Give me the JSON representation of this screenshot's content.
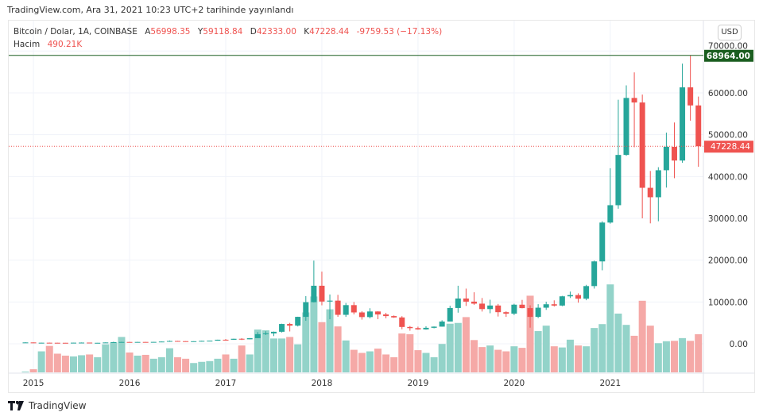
{
  "published": "TradingView.com, Ara 31, 2021 10:23 UTC+2 tarihinde yayınlandı",
  "legend": {
    "symbol": "Bitcoin / Dolar, 1A, COINBASE",
    "open_label": "A",
    "open": "56998.35",
    "high_label": "Y",
    "high": "59118.84",
    "low_label": "D",
    "low": "42333.00",
    "close_label": "K",
    "close": "47228.44",
    "change": "-9759.53 (−17.13%)",
    "volume_label": "Hacim",
    "volume": "490.21K"
  },
  "currency_button": "USD",
  "footer_brand": "TradingView",
  "colors": {
    "up": "#26a69a",
    "down": "#ef5350",
    "up_volume": "#93d3c9",
    "down_volume": "#f5a9a7",
    "high_line": "#1b5e20"
  },
  "chart_data": {
    "type": "candlestick",
    "interval": "1 month",
    "x_ticks": [
      "2015",
      "2016",
      "2017",
      "2018",
      "2019",
      "2020",
      "2021"
    ],
    "y_ticks": [
      "0.00",
      "10000.00",
      "20000.00",
      "30000.00",
      "40000.00",
      "50000.00",
      "60000.00",
      "70000.00"
    ],
    "ylim": [
      -6500,
      76000
    ],
    "grid": true,
    "high_marker": {
      "value": 68964.0,
      "label": "68964.00"
    },
    "last_price": {
      "value": 47228.44,
      "label": "47228.44"
    },
    "categories": [
      "2014-12",
      "2015-01",
      "2015-02",
      "2015-03",
      "2015-04",
      "2015-05",
      "2015-06",
      "2015-07",
      "2015-08",
      "2015-09",
      "2015-10",
      "2015-11",
      "2015-12",
      "2016-01",
      "2016-02",
      "2016-03",
      "2016-04",
      "2016-05",
      "2016-06",
      "2016-07",
      "2016-08",
      "2016-09",
      "2016-10",
      "2016-11",
      "2016-12",
      "2017-01",
      "2017-02",
      "2017-03",
      "2017-04",
      "2017-05",
      "2017-06",
      "2017-07",
      "2017-08",
      "2017-09",
      "2017-10",
      "2017-11",
      "2017-12",
      "2018-01",
      "2018-02",
      "2018-03",
      "2018-04",
      "2018-05",
      "2018-06",
      "2018-07",
      "2018-08",
      "2018-09",
      "2018-10",
      "2018-11",
      "2018-12",
      "2019-01",
      "2019-02",
      "2019-03",
      "2019-04",
      "2019-05",
      "2019-06",
      "2019-07",
      "2019-08",
      "2019-09",
      "2019-10",
      "2019-11",
      "2019-12",
      "2020-01",
      "2020-02",
      "2020-03",
      "2020-04",
      "2020-05",
      "2020-06",
      "2020-07",
      "2020-08",
      "2020-09",
      "2020-10",
      "2020-11",
      "2020-12",
      "2021-01",
      "2021-02",
      "2021-03",
      "2021-04",
      "2021-05",
      "2021-06",
      "2021-07",
      "2021-08",
      "2021-09",
      "2021-10",
      "2021-11",
      "2021-12"
    ],
    "ohlc": [
      [
        300,
        390,
        300,
        320
      ],
      [
        318,
        320,
        152,
        217
      ],
      [
        217,
        265,
        212,
        254
      ],
      [
        254,
        300,
        236,
        244
      ],
      [
        244,
        261,
        214,
        236
      ],
      [
        236,
        247,
        228,
        230
      ],
      [
        230,
        268,
        220,
        264
      ],
      [
        264,
        318,
        253,
        284
      ],
      [
        284,
        285,
        198,
        230
      ],
      [
        230,
        247,
        225,
        236
      ],
      [
        236,
        335,
        236,
        314
      ],
      [
        314,
        500,
        298,
        378
      ],
      [
        378,
        470,
        350,
        430
      ],
      [
        430,
        462,
        352,
        369
      ],
      [
        369,
        445,
        366,
        437
      ],
      [
        437,
        441,
        391,
        416
      ],
      [
        416,
        467,
        413,
        448
      ],
      [
        448,
        550,
        435,
        531
      ],
      [
        531,
        780,
        520,
        673
      ],
      [
        673,
        705,
        605,
        624
      ],
      [
        624,
        626,
        470,
        575
      ],
      [
        575,
        610,
        565,
        609
      ],
      [
        609,
        740,
        605,
        700
      ],
      [
        700,
        755,
        686,
        745
      ],
      [
        745,
        980,
        736,
        968
      ],
      [
        968,
        1150,
        750,
        965
      ],
      [
        965,
        1210,
        920,
        1190
      ],
      [
        1190,
        1350,
        890,
        1071
      ],
      [
        1071,
        1350,
        1060,
        1348
      ],
      [
        1348,
        2800,
        1345,
        2300
      ],
      [
        2300,
        3000,
        2100,
        2480
      ],
      [
        2480,
        2920,
        1840,
        2870
      ],
      [
        2870,
        4800,
        2700,
        4735
      ],
      [
        4735,
        5000,
        2950,
        4340
      ],
      [
        4340,
        6470,
        4140,
        6440
      ],
      [
        6440,
        11400,
        5500,
        9950
      ],
      [
        9950,
        19891,
        9900,
        13880
      ],
      [
        13880,
        17260,
        9200,
        10100
      ],
      [
        10100,
        11790,
        5873,
        10320
      ],
      [
        10320,
        11700,
        6450,
        6925
      ],
      [
        6925,
        9760,
        6430,
        9245
      ],
      [
        9245,
        9990,
        7030,
        7500
      ],
      [
        7500,
        7780,
        5780,
        6390
      ],
      [
        6390,
        8500,
        6070,
        7725
      ],
      [
        7725,
        7760,
        5880,
        7010
      ],
      [
        7010,
        7400,
        6100,
        6625
      ],
      [
        6625,
        6780,
        6200,
        6300
      ],
      [
        6300,
        6600,
        3480,
        4020
      ],
      [
        4020,
        4250,
        3130,
        3740
      ],
      [
        3740,
        4100,
        3360,
        3440
      ],
      [
        3440,
        4190,
        3380,
        3820
      ],
      [
        3820,
        4140,
        3690,
        4100
      ],
      [
        4100,
        5620,
        4090,
        5320
      ],
      [
        5320,
        9100,
        5330,
        8560
      ],
      [
        8560,
        13880,
        7440,
        10820
      ],
      [
        10820,
        13200,
        9050,
        10080
      ],
      [
        10080,
        12320,
        9320,
        9600
      ],
      [
        9600,
        10950,
        7710,
        8300
      ],
      [
        8300,
        10540,
        7300,
        9150
      ],
      [
        9150,
        9530,
        6520,
        7560
      ],
      [
        7560,
        7760,
        6430,
        7200
      ],
      [
        7200,
        9580,
        6860,
        9350
      ],
      [
        9350,
        10500,
        8470,
        8530
      ],
      [
        8530,
        9200,
        3850,
        6430
      ],
      [
        6430,
        9470,
        6150,
        8630
      ],
      [
        8630,
        10070,
        8110,
        9450
      ],
      [
        9450,
        10390,
        8900,
        9140
      ],
      [
        9140,
        11460,
        8990,
        11350
      ],
      [
        11350,
        12480,
        10950,
        11650
      ],
      [
        11650,
        12070,
        9830,
        10780
      ],
      [
        10780,
        14100,
        10420,
        13800
      ],
      [
        13800,
        19890,
        13200,
        19700
      ],
      [
        19700,
        29300,
        17570,
        28990
      ],
      [
        28990,
        41980,
        28730,
        33140
      ],
      [
        33140,
        58350,
        32300,
        45160
      ],
      [
        45160,
        61790,
        44950,
        58790
      ],
      [
        58790,
        64900,
        47000,
        57700
      ],
      [
        57700,
        59600,
        30000,
        37300
      ],
      [
        37300,
        41330,
        28800,
        35040
      ],
      [
        35040,
        42230,
        29300,
        41500
      ],
      [
        41500,
        50500,
        37350,
        47100
      ],
      [
        47100,
        52920,
        39600,
        43820
      ],
      [
        43820,
        67000,
        43290,
        61320
      ],
      [
        61320,
        68964,
        53350,
        57000
      ],
      [
        56998.35,
        59118.84,
        42333,
        47228.44
      ]
    ],
    "volume_k": [
      10,
      40,
      270,
      340,
      240,
      215,
      205,
      220,
      230,
      195,
      360,
      385,
      455,
      255,
      215,
      225,
      175,
      195,
      310,
      195,
      175,
      120,
      135,
      145,
      175,
      230,
      175,
      345,
      230,
      550,
      540,
      435,
      435,
      455,
      360,
      770,
      975,
      645,
      810,
      590,
      410,
      290,
      250,
      270,
      305,
      230,
      195,
      500,
      490,
      285,
      250,
      195,
      365,
      625,
      635,
      710,
      415,
      325,
      345,
      290,
      270,
      335,
      315,
      985,
      530,
      600,
      335,
      320,
      420,
      345,
      335,
      570,
      620,
      1130,
      755,
      610,
      470,
      920,
      600,
      375,
      400,
      405,
      440,
      405,
      490.21
    ]
  }
}
